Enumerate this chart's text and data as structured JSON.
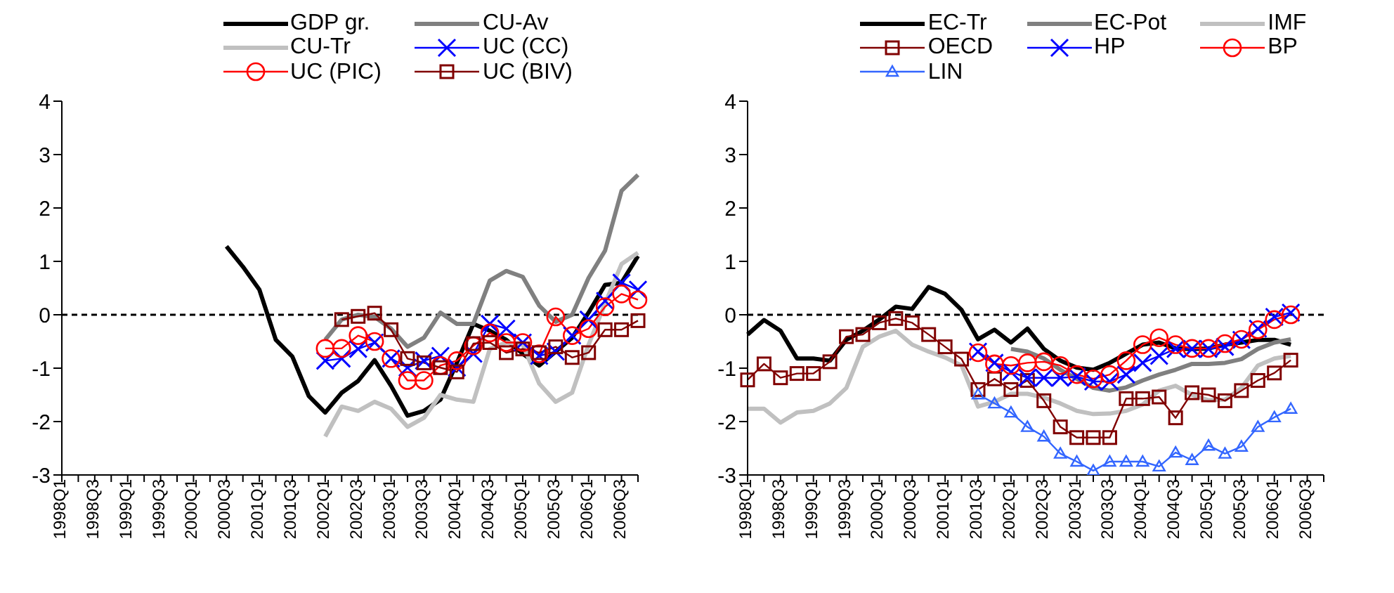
{
  "chart_data": [
    {
      "type": "line",
      "categories": [
        "1998Q1",
        null,
        "1998Q3",
        null,
        "1999Q1",
        null,
        "1999Q3",
        null,
        "2000Q1",
        null,
        "2000Q3",
        null,
        "2001Q1",
        null,
        "2001Q3",
        null,
        "2002Q1",
        null,
        "2002Q3",
        null,
        "2003Q1",
        null,
        "2003Q3",
        null,
        "2004Q1",
        null,
        "2004Q3",
        null,
        "2005Q1",
        null,
        "2005Q3",
        null,
        "2006Q1",
        null,
        "2006Q3",
        null
      ],
      "ylim": [
        -3,
        4
      ],
      "yticks": [
        -3,
        -2,
        -1,
        0,
        1,
        2,
        3,
        4
      ],
      "legend": "top",
      "ref_lines": [
        {
          "axis": "y",
          "value": 0,
          "color": "#000000",
          "line_style": "dashed"
        }
      ],
      "series": [
        {
          "name": "GDP gr.",
          "color": "#000000",
          "marker": "none",
          "values": [
            null,
            null,
            null,
            null,
            null,
            null,
            null,
            null,
            null,
            null,
            1.28,
            0.9,
            0.47,
            -0.47,
            -0.78,
            -1.52,
            -1.83,
            -1.46,
            -1.24,
            -0.85,
            -1.33,
            -1.89,
            -1.8,
            -1.59,
            -0.9,
            -0.17,
            -0.3,
            -0.47,
            -0.73,
            -0.95,
            -0.69,
            -0.43,
            0.04,
            0.56,
            0.6,
            1.1
          ]
        },
        {
          "name": "CU-Av",
          "color": "#808080",
          "marker": "none",
          "values": [
            null,
            null,
            null,
            null,
            null,
            null,
            null,
            null,
            null,
            null,
            null,
            null,
            null,
            null,
            null,
            null,
            -0.47,
            -0.09,
            0,
            -0.04,
            -0.26,
            -0.6,
            -0.43,
            0.04,
            -0.17,
            -0.17,
            0.64,
            0.82,
            0.71,
            0.17,
            -0.13,
            0,
            0.69,
            1.2,
            2.32,
            2.62
          ]
        },
        {
          "name": "CU-Tr",
          "color": "#c0c0c0",
          "marker": "none",
          "values": [
            null,
            null,
            null,
            null,
            null,
            null,
            null,
            null,
            null,
            null,
            null,
            null,
            null,
            null,
            null,
            null,
            -2.28,
            -1.72,
            -1.8,
            -1.63,
            -1.76,
            -2.1,
            -1.93,
            -1.5,
            -1.59,
            -1.63,
            -0.64,
            -0.52,
            -0.56,
            -1.29,
            -1.63,
            -1.46,
            -0.56,
            0.21,
            0.95,
            1.16
          ]
        },
        {
          "name": "UC (CC)",
          "color": "#0000ff",
          "marker": "cross",
          "values": [
            null,
            null,
            null,
            null,
            null,
            null,
            null,
            null,
            null,
            null,
            null,
            null,
            null,
            null,
            null,
            null,
            -0.86,
            -0.82,
            -0.64,
            -0.52,
            -0.82,
            -0.99,
            -0.86,
            -0.77,
            -0.99,
            -0.73,
            -0.17,
            -0.26,
            -0.52,
            -0.77,
            -0.69,
            -0.39,
            -0.09,
            0.26,
            0.6,
            0.47
          ]
        },
        {
          "name": "UC (PIC)",
          "color": "#ff0000",
          "marker": "circle",
          "values": [
            null,
            null,
            null,
            null,
            null,
            null,
            null,
            null,
            null,
            null,
            null,
            null,
            null,
            null,
            null,
            null,
            -0.63,
            -0.63,
            -0.39,
            -0.5,
            -0.82,
            -1.23,
            -1.23,
            -0.95,
            -0.86,
            -0.58,
            -0.34,
            -0.52,
            -0.52,
            -0.73,
            -0.04,
            -0.39,
            -0.26,
            0.15,
            0.39,
            0.28
          ]
        },
        {
          "name": "UC (BIV)",
          "color": "#800000",
          "marker": "square",
          "values": [
            null,
            null,
            null,
            null,
            null,
            null,
            null,
            null,
            null,
            null,
            null,
            null,
            null,
            null,
            null,
            null,
            null,
            -0.09,
            -0.03,
            0.03,
            -0.28,
            -0.82,
            -0.9,
            -0.99,
            -1.07,
            -0.54,
            -0.52,
            -0.71,
            -0.64,
            -0.71,
            -0.6,
            -0.8,
            -0.71,
            -0.28,
            -0.28,
            -0.11
          ]
        }
      ]
    },
    {
      "type": "line",
      "categories": [
        "1998Q1",
        null,
        "1998Q3",
        null,
        "1999Q1",
        null,
        "1999Q3",
        null,
        "2000Q1",
        null,
        "2000Q3",
        null,
        "2001Q1",
        null,
        "2001Q3",
        null,
        "2002Q1",
        null,
        "2002Q3",
        null,
        "2003Q1",
        null,
        "2003Q3",
        null,
        "2004Q1",
        null,
        "2004Q3",
        null,
        "2005Q1",
        null,
        "2005Q3",
        null,
        "2006Q1",
        null,
        "2006Q3",
        null
      ],
      "ylim": [
        -3,
        4
      ],
      "yticks": [
        -3,
        -2,
        -1,
        0,
        1,
        2,
        3,
        4
      ],
      "legend": "top",
      "ref_lines": [
        {
          "axis": "y",
          "value": 0,
          "color": "#000000",
          "line_style": "dashed"
        }
      ],
      "series": [
        {
          "name": "EC-Tr",
          "color": "#000000",
          "marker": "none",
          "values": [
            -0.37,
            -0.1,
            -0.3,
            -0.82,
            -0.82,
            -0.86,
            -0.47,
            -0.3,
            -0.09,
            0.15,
            0.11,
            0.52,
            0.39,
            0.09,
            -0.46,
            -0.28,
            -0.52,
            -0.26,
            -0.64,
            -0.86,
            -0.99,
            -1.03,
            -0.9,
            -0.73,
            -0.56,
            -0.52,
            -0.63,
            -0.64,
            -0.63,
            -0.56,
            -0.52,
            -0.47,
            -0.47,
            -0.56,
            null,
            null
          ]
        },
        {
          "name": "EC-Pot",
          "color": "#808080",
          "marker": "none",
          "values": [
            null,
            null,
            null,
            null,
            null,
            null,
            null,
            null,
            null,
            null,
            null,
            null,
            null,
            null,
            null,
            null,
            -0.64,
            -0.69,
            -0.82,
            -1.03,
            -1.2,
            -1.37,
            -1.42,
            -1.36,
            -1.23,
            -1.12,
            -1.03,
            -0.92,
            -0.92,
            -0.9,
            -0.83,
            -0.64,
            -0.52,
            -0.46,
            null,
            null
          ]
        },
        {
          "name": "IMF",
          "color": "#c0c0c0",
          "marker": "none",
          "values": [
            -1.76,
            -1.76,
            -2.02,
            -1.83,
            -1.8,
            -1.66,
            -1.37,
            -0.6,
            -0.41,
            -0.3,
            -0.56,
            -0.69,
            -0.8,
            -0.95,
            -1.72,
            -1.63,
            -1.48,
            -1.48,
            -1.55,
            -1.66,
            -1.8,
            -1.86,
            -1.85,
            -1.8,
            -1.68,
            -1.42,
            -1.33,
            -1.5,
            -1.6,
            -1.59,
            -1.37,
            -0.95,
            -0.82,
            -0.77,
            null,
            null
          ]
        },
        {
          "name": "OECD",
          "color": "#800000",
          "marker": "square",
          "values": [
            -1.22,
            -0.92,
            -1.18,
            -1.1,
            -1.1,
            -0.88,
            -0.41,
            -0.37,
            -0.15,
            -0.07,
            -0.15,
            -0.37,
            -0.6,
            -0.83,
            -1.4,
            -1.2,
            -1.4,
            -1.23,
            -1.61,
            -2.1,
            -2.3,
            -2.3,
            -2.3,
            -1.57,
            -1.57,
            -1.54,
            -1.93,
            -1.46,
            -1.5,
            -1.61,
            -1.42,
            -1.23,
            -1.09,
            -0.85,
            null,
            null
          ]
        },
        {
          "name": "HP",
          "color": "#0000ff",
          "marker": "cross",
          "values": [
            null,
            null,
            null,
            null,
            null,
            null,
            null,
            null,
            null,
            null,
            null,
            null,
            null,
            null,
            -0.69,
            -0.9,
            -1.07,
            -1.18,
            -1.18,
            -1.18,
            -1.16,
            -1.25,
            -1.25,
            -1.12,
            -0.9,
            -0.77,
            -0.64,
            -0.64,
            -0.64,
            -0.6,
            -0.47,
            -0.26,
            -0.04,
            0.04,
            null,
            null
          ]
        },
        {
          "name": "BP",
          "color": "#ff0000",
          "marker": "circle",
          "values": [
            null,
            null,
            null,
            null,
            null,
            null,
            null,
            null,
            null,
            null,
            null,
            null,
            null,
            null,
            -0.71,
            -0.92,
            -0.95,
            -0.9,
            -0.88,
            -0.95,
            -1.12,
            -1.2,
            -1.12,
            -0.86,
            -0.56,
            -0.43,
            -0.56,
            -0.63,
            -0.63,
            -0.54,
            -0.46,
            -0.28,
            -0.09,
            0,
            null,
            null
          ]
        },
        {
          "name": "LIN",
          "color": "#3366ff",
          "marker": "triangle",
          "values": [
            null,
            null,
            null,
            null,
            null,
            null,
            null,
            null,
            null,
            null,
            null,
            null,
            null,
            null,
            -1.49,
            -1.66,
            -1.83,
            -2.1,
            -2.28,
            -2.6,
            -2.75,
            -2.92,
            -2.75,
            -2.75,
            -2.75,
            -2.84,
            -2.58,
            -2.72,
            -2.45,
            -2.6,
            -2.47,
            -2.1,
            -1.92,
            -1.76,
            null,
            null
          ]
        }
      ]
    }
  ]
}
